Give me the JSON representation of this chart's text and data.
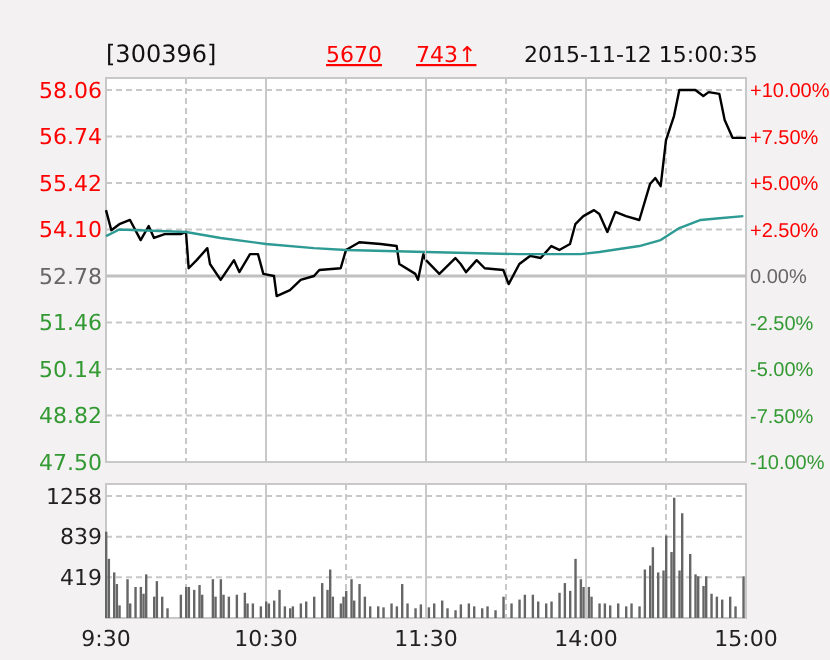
{
  "chart_data": [
    {
      "type": "line",
      "title": "[300396]",
      "annotations": [
        "5670",
        "743↑",
        "2015-11-12 15:00:35"
      ],
      "xlim": [
        "2015-11-12T09:30",
        "2015-11-12T11:30"
      ],
      "xticks": [
        "2015-11-12T09:30",
        "2015-11-12T10:00",
        "2015-11-12T10:30",
        "2015-11-12T11:00",
        "2015-11-12T11:30"
      ],
      "tick_labels": "y",
      "grid": true,
      "ylim": [
        47.5,
        58.06
      ],
      "yticks": [
        58.06,
        56.74,
        55.42,
        {
          "value": 54.1,
          "label": "54.10"
        },
        52.78,
        51.46,
        50.14,
        48.82,
        {
          "value": 47.5,
          "label": "47.50"
        }
      ],
      "ref_lines": [
        {
          "axis": "y",
          "value": 52.78,
          "color": "#c0c0c0"
        },
        {
          "axis": "x",
          "value": "2015-11-12T10:30",
          "color": "#c8c8c8"
        }
      ],
      "series": [
        {
          "color": "#000000",
          "x": [
            "2015-11-12T09:30",
            "2015-11-12T09:32",
            "2015-11-12T09:35",
            "2015-11-12T09:39",
            "2015-11-12T09:43",
            "2015-11-12T09:46",
            "2015-11-12T09:48",
            "2015-11-12T09:52",
            "2015-11-12T09:58",
            "2015-11-12T10:00",
            "2015-11-12T10:01",
            "2015-11-12T10:04",
            "2015-11-12T10:08",
            "2015-11-12T10:09",
            "2015-11-12T10:13",
            "2015-11-12T10:18",
            "2015-11-12T10:20",
            "2015-11-12T10:24",
            "2015-11-12T10:27",
            "2015-11-12T10:29",
            "2015-11-12T10:33",
            "2015-11-12T10:34",
            "2015-11-12T10:39",
            "2015-11-12T10:43",
            "2015-11-12T10:48",
            "2015-11-12T10:50",
            "2015-11-12T10:58",
            "2015-11-12T11:00",
            "2015-11-12T11:05",
            "2015-11-12T11:13",
            "2015-11-12T11:19",
            "2015-11-12T11:20",
            "2015-11-12T11:26",
            "2015-11-12T11:27",
            "2015-11-12T11:29",
            "2015-11-12T11:30"
          ],
          "values": [
            54.65,
            54.08,
            54.25,
            54.37,
            53.8,
            54.2,
            53.86,
            53.97,
            53.97,
            54.03,
            53.0,
            53.23,
            53.57,
            53.12,
            52.67,
            53.23,
            52.89,
            53.4,
            53.4,
            52.84,
            52.78,
            52.21,
            52.38,
            52.67,
            52.78,
            52.95,
            53.0,
            53.52,
            53.74,
            53.69,
            53.63,
            53.12,
            52.84,
            52.67,
            53.4,
            53.23
          ]
        },
        {
          "color": "#2e9a94",
          "x": [
            "2015-11-12T09:30",
            "2015-11-12T09:35",
            "2015-11-12T10:00",
            "2015-11-12T10:13",
            "2015-11-12T10:30",
            "2015-11-12T10:48",
            "2015-11-12T11:00",
            "2015-11-12T11:30"
          ],
          "values": [
            53.91,
            54.1,
            54.03,
            53.86,
            53.69,
            53.57,
            53.52,
            53.46
          ]
        }
      ]
    },
    {
      "type": "line",
      "xlim": [
        "2015-11-12T13:00",
        "2015-11-12T15:00"
      ],
      "xticks": [
        "2015-11-12T13:30",
        "2015-11-12T14:00",
        "2015-11-12T14:30",
        "2015-11-12T15:00"
      ],
      "tick_labels": false,
      "grid": true,
      "ylim": [
        47.5,
        58.06
      ],
      "yticks": [
        58.06,
        56.74,
        55.42,
        54.1,
        52.78,
        51.46,
        50.14,
        48.82,
        47.5
      ],
      "y2lim": [
        -10,
        10
      ],
      "y2ticks": [
        {
          "value": 10,
          "label": "+10.00%"
        },
        {
          "value": 7.5,
          "label": "+7.50%"
        },
        {
          "value": 5,
          "label": "+5.00%"
        },
        {
          "value": 2.5,
          "label": "+2.50%"
        },
        {
          "value": 0,
          "label": "0.00%"
        },
        {
          "value": -2.5,
          "label": "-2.50%"
        },
        {
          "value": -5,
          "label": "-5.00%"
        },
        {
          "value": -7.5,
          "label": "-7.50%"
        },
        {
          "value": -10,
          "label": "-10.00%"
        }
      ],
      "ref_lines": [
        {
          "axis": "y",
          "value": 52.78,
          "color": "#c0c0c0"
        },
        {
          "axis": "x",
          "value": "2015-11-12T14:00",
          "color": "#c8c8c8"
        }
      ],
      "series": [
        {
          "color": "#000000",
          "x": [
            "2015-11-12T13:00",
            "2015-11-12T13:05",
            "2015-11-12T13:11",
            "2015-11-12T13:13",
            "2015-11-12T13:15",
            "2015-11-12T13:19",
            "2015-11-12T13:22",
            "2015-11-12T13:29",
            "2015-11-12T13:31",
            "2015-11-12T13:35",
            "2015-11-12T13:39",
            "2015-11-12T13:43",
            "2015-11-12T13:47",
            "2015-11-12T13:50",
            "2015-11-12T13:54",
            "2015-11-12T13:56",
            "2015-11-12T13:59",
            "2015-11-12T14:03",
            "2015-11-12T14:05",
            "2015-11-12T14:08",
            "2015-11-12T14:11",
            "2015-11-12T14:15",
            "2015-11-12T14:20",
            "2015-11-12T14:24",
            "2015-11-12T14:26",
            "2015-11-12T14:28",
            "2015-11-12T14:30",
            "2015-11-12T14:33",
            "2015-11-12T14:35",
            "2015-11-12T14:39",
            "2015-11-12T14:41",
            "2015-11-12T14:44",
            "2015-11-12T14:46",
            "2015-11-12T14:50",
            "2015-11-12T14:52",
            "2015-11-12T14:55",
            "2015-11-12T15:00"
          ],
          "values": [
            53.23,
            52.84,
            53.29,
            53.12,
            52.89,
            53.23,
            53.0,
            52.95,
            52.55,
            53.12,
            53.35,
            53.29,
            53.63,
            53.52,
            53.69,
            54.25,
            54.48,
            54.65,
            54.54,
            54.03,
            54.6,
            54.48,
            54.37,
            55.39,
            55.56,
            55.33,
            56.64,
            57.32,
            58.06,
            58.06,
            58.06,
            57.89,
            58.0,
            57.95,
            57.21,
            56.7,
            56.7
          ]
        },
        {
          "color": "#2e9a94",
          "x": [
            "2015-11-12T13:00",
            "2015-11-12T13:35",
            "2015-11-12T13:58",
            "2015-11-12T14:05",
            "2015-11-12T14:20",
            "2015-11-12T14:28",
            "2015-11-12T14:35",
            "2015-11-12T14:43",
            "2015-11-12T14:50",
            "2015-11-12T14:59"
          ],
          "values": [
            53.46,
            53.4,
            53.4,
            53.46,
            53.63,
            53.8,
            54.14,
            54.37,
            54.42,
            54.48
          ]
        }
      ]
    },
    {
      "type": "bar",
      "color": "#666666",
      "xlim": [
        "2015-11-12T09:30",
        "2015-11-12T11:30"
      ],
      "xticks": [
        {
          "value": "2015-11-12T09:30",
          "label": "9:30"
        },
        {
          "value": "2015-11-12T10:00",
          "label": null
        },
        {
          "value": "2015-11-12T10:30",
          "label": "10:30"
        },
        {
          "value": "2015-11-12T11:00",
          "label": null
        },
        {
          "value": "2015-11-12T11:30",
          "label": "11:30"
        }
      ],
      "ylim": [
        0,
        1258
      ],
      "yticks": [
        419,
        839,
        1258
      ],
      "grid": true,
      "ref_lines": [
        {
          "axis": "x",
          "value": "2015-11-12T10:30",
          "color": "#c8c8c8"
        }
      ],
      "x": [
        "2015-11-12T09:30",
        "2015-11-12T09:31",
        "2015-11-12T09:33",
        "2015-11-12T09:34",
        "2015-11-12T09:35",
        "2015-11-12T09:38",
        "2015-11-12T09:39",
        "2015-11-12T09:41",
        "2015-11-12T09:43",
        "2015-11-12T09:44",
        "2015-11-12T09:45",
        "2015-11-12T09:48",
        "2015-11-12T09:49",
        "2015-11-12T09:51",
        "2015-11-12T09:53",
        "2015-11-12T09:58",
        "2015-11-12T10:00",
        "2015-11-12T10:01",
        "2015-11-12T10:03",
        "2015-11-12T10:05",
        "2015-11-12T10:06",
        "2015-11-12T10:10",
        "2015-11-12T10:11",
        "2015-11-12T10:13",
        "2015-11-12T10:14",
        "2015-11-12T10:16",
        "2015-11-12T10:19",
        "2015-11-12T10:22",
        "2015-11-12T10:23",
        "2015-11-12T10:25",
        "2015-11-12T10:28",
        "2015-11-12T10:30",
        "2015-11-12T10:31",
        "2015-11-12T10:33",
        "2015-11-12T10:35",
        "2015-11-12T10:37",
        "2015-11-12T10:39",
        "2015-11-12T10:40",
        "2015-11-12T10:43",
        "2015-11-12T10:45",
        "2015-11-12T10:48",
        "2015-11-12T10:51",
        "2015-11-12T10:53",
        "2015-11-12T10:54",
        "2015-11-12T10:55",
        "2015-11-12T10:58",
        "2015-11-12T10:59",
        "2015-11-12T11:00",
        "2015-11-12T11:02",
        "2015-11-12T11:03",
        "2015-11-12T11:05",
        "2015-11-12T11:07",
        "2015-11-12T11:09",
        "2015-11-12T11:12",
        "2015-11-12T11:14",
        "2015-11-12T11:17",
        "2015-11-12T11:19",
        "2015-11-12T11:21",
        "2015-11-12T11:23",
        "2015-11-12T11:26",
        "2015-11-12T11:28"
      ],
      "values": [
        890,
        610,
        470,
        350,
        130,
        400,
        150,
        320,
        320,
        250,
        450,
        220,
        380,
        220,
        100,
        240,
        320,
        320,
        290,
        340,
        240,
        400,
        220,
        400,
        240,
        220,
        240,
        260,
        150,
        150,
        120,
        170,
        150,
        180,
        290,
        120,
        100,
        120,
        150,
        170,
        220,
        360,
        290,
        500,
        220,
        150,
        220,
        280,
        400,
        180,
        350,
        220,
        120,
        120,
        110,
        150,
        120,
        350,
        150,
        100,
        140
      ]
    },
    {
      "type": "bar",
      "color": "#666666",
      "xlim": [
        "2015-11-12T13:00",
        "2015-11-12T15:00"
      ],
      "xticks": [
        {
          "value": "2015-11-12T13:30",
          "label": null
        },
        {
          "value": "2015-11-12T14:00",
          "label": "14:00"
        },
        {
          "value": "2015-11-12T14:30",
          "label": null
        },
        {
          "value": "2015-11-12T15:00",
          "label": "15:00"
        }
      ],
      "ylim": [
        0,
        1258
      ],
      "yticks": [
        419,
        839,
        1258
      ],
      "grid": true,
      "tick_labels": "x",
      "ref_lines": [
        {
          "axis": "x",
          "value": "2015-11-12T14:00",
          "color": "#c8c8c8"
        }
      ],
      "x": [
        "2015-11-12T13:01",
        "2015-11-12T13:03",
        "2015-11-12T13:06",
        "2015-11-12T13:08",
        "2015-11-12T13:11",
        "2015-11-12T13:13",
        "2015-11-12T13:16",
        "2015-11-12T13:18",
        "2015-11-12T13:21",
        "2015-11-12T13:23",
        "2015-11-12T13:26",
        "2015-11-12T13:29",
        "2015-11-12T13:32",
        "2015-11-12T13:35",
        "2015-11-12T13:37",
        "2015-11-12T13:40",
        "2015-11-12T13:42",
        "2015-11-12T13:45",
        "2015-11-12T13:47",
        "2015-11-12T13:50",
        "2015-11-12T13:52",
        "2015-11-12T13:54",
        "2015-11-12T13:56",
        "2015-11-12T13:58",
        "2015-11-12T13:59",
        "2015-11-12T14:01",
        "2015-11-12T14:02",
        "2015-11-12T14:05",
        "2015-11-12T14:07",
        "2015-11-12T14:09",
        "2015-11-12T14:12",
        "2015-11-12T14:15",
        "2015-11-12T14:17",
        "2015-11-12T14:20",
        "2015-11-12T14:22",
        "2015-11-12T14:24",
        "2015-11-12T14:25",
        "2015-11-12T14:27",
        "2015-11-12T14:29",
        "2015-11-12T14:30",
        "2015-11-12T14:32",
        "2015-11-12T14:33",
        "2015-11-12T14:35",
        "2015-11-12T14:36",
        "2015-11-12T14:39",
        "2015-11-12T14:41",
        "2015-11-12T14:42",
        "2015-11-12T14:44",
        "2015-11-12T14:45",
        "2015-11-12T14:47",
        "2015-11-12T14:49",
        "2015-11-12T14:51",
        "2015-11-12T14:54",
        "2015-11-12T14:56",
        "2015-11-12T14:59"
      ],
      "values": [
        110,
        150,
        180,
        100,
        80,
        140,
        150,
        120,
        100,
        120,
        80,
        220,
        150,
        190,
        240,
        240,
        170,
        150,
        170,
        260,
        360,
        280,
        610,
        400,
        320,
        320,
        220,
        150,
        150,
        130,
        150,
        120,
        150,
        120,
        500,
        540,
        730,
        470,
        490,
        850,
        680,
        1240,
        490,
        1080,
        660,
        450,
        430,
        330,
        430,
        250,
        220,
        190,
        220,
        120,
        430
      ]
    }
  ]
}
